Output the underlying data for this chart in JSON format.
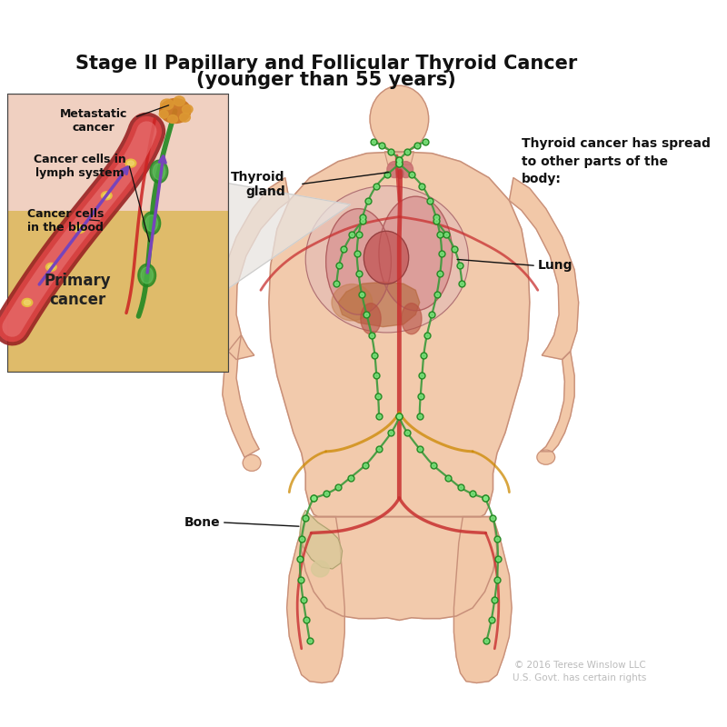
{
  "title_line1": "Stage II Papillary and Follicular Thyroid Cancer",
  "title_line2": "(younger than 55 years)",
  "title_fontsize": 15,
  "bg_color": "#ffffff",
  "copyright_text": "© 2016 Terese Winslow LLC\nU.S. Govt. has certain rights",
  "copyright_color": "#bbbbbb",
  "copyright_fontsize": 7.5,
  "labels": {
    "metastatic_cancer": "Metastatic\ncancer",
    "cancer_cells_lymph": "Cancer cells in\nlymph system",
    "cancer_cells_blood": "Cancer cells\nin the blood",
    "primary_cancer": "Primary\ncancer",
    "thyroid_gland": "Thyroid\ngland",
    "lung": "Lung",
    "bone": "Bone",
    "spread_text": "Thyroid cancer has spread\nto other parts of the\nbody:"
  },
  "body_skin": "#f2c8a8",
  "body_outline": "#c8907a",
  "blood_red": "#c83030",
  "lymph_green": "#3a9a3a",
  "lymph_node_green": "#228822",
  "purple_arrow": "#7755aa",
  "tissue_yellow": "#e8c870",
  "lung_pink": "#d88080",
  "heart_red": "#b84040",
  "organ_brown": "#c07040",
  "inset_border": "#444444",
  "inset_bg_pink": "#f0d5c8",
  "inset_tissue": "#ddb870",
  "blood_vessel_red": "#cc3333",
  "met_orange": "#cc7722",
  "connector_white": "#f0f0f0"
}
